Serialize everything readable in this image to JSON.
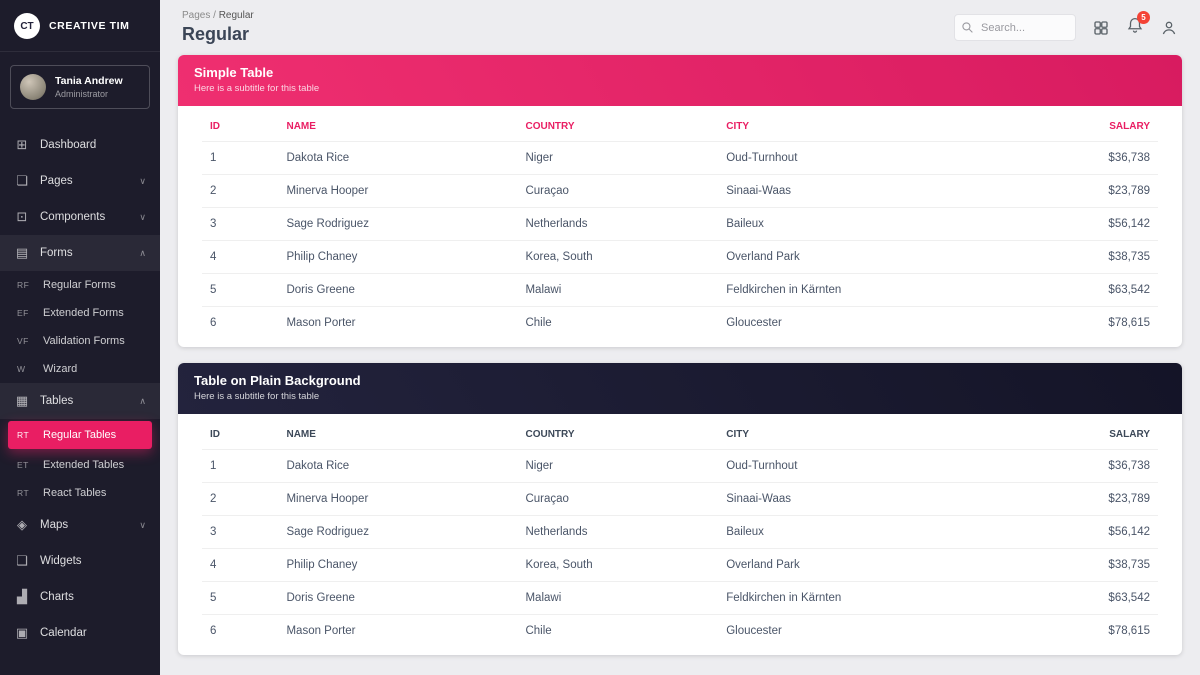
{
  "colors": {
    "accent": "#e91e63",
    "sidebar_bg": "#1d1c2b",
    "dark_header": "#1a1a31",
    "badge": "#f44336"
  },
  "sidebar": {
    "brand": {
      "initials": "CT",
      "name": "CREATIVE TIM"
    },
    "user": {
      "name": "Tania Andrew",
      "role": "Administrator"
    },
    "icon_glyphs": {
      "dashboard": "⊞",
      "pages": "❏",
      "components": "⊡",
      "forms": "▤",
      "tables": "▦",
      "maps": "◈",
      "widgets": "❑",
      "charts": "▟",
      "calendar": "▣"
    },
    "items": [
      {
        "label": "Dashboard",
        "icon": "dashboard"
      },
      {
        "label": "Pages",
        "icon": "pages",
        "chevron": "down"
      },
      {
        "label": "Components",
        "icon": "components",
        "chevron": "down"
      },
      {
        "label": "Forms",
        "icon": "forms",
        "chevron": "up",
        "open": true,
        "children": [
          {
            "mini": "RF",
            "label": "Regular Forms"
          },
          {
            "mini": "EF",
            "label": "Extended Forms"
          },
          {
            "mini": "VF",
            "label": "Validation Forms"
          },
          {
            "mini": "W",
            "label": "Wizard"
          }
        ]
      },
      {
        "label": "Tables",
        "icon": "tables",
        "chevron": "up",
        "open": true,
        "children": [
          {
            "mini": "RT",
            "label": "Regular Tables",
            "active": true
          },
          {
            "mini": "ET",
            "label": "Extended Tables"
          },
          {
            "mini": "RT",
            "label": "React Tables"
          }
        ]
      },
      {
        "label": "Maps",
        "icon": "maps",
        "chevron": "down"
      },
      {
        "label": "Widgets",
        "icon": "widgets"
      },
      {
        "label": "Charts",
        "icon": "charts"
      },
      {
        "label": "Calendar",
        "icon": "calendar"
      }
    ]
  },
  "header": {
    "breadcrumb": {
      "parent": "Pages",
      "separator": "/",
      "current": "Regular"
    },
    "title": "Regular",
    "search_placeholder": "Search...",
    "notification_count": "5"
  },
  "cards": [
    {
      "title": "Simple Table",
      "subtitle": "Here is a subtitle for this table",
      "variant": "rose"
    },
    {
      "title": "Table on Plain Background",
      "subtitle": "Here is a subtitle for this table",
      "variant": "dark"
    }
  ],
  "table": {
    "columns": [
      "ID",
      "NAME",
      "COUNTRY",
      "CITY",
      "SALARY"
    ],
    "rows": [
      [
        "1",
        "Dakota Rice",
        "Niger",
        "Oud-Turnhout",
        "$36,738"
      ],
      [
        "2",
        "Minerva Hooper",
        "Curaçao",
        "Sinaai-Waas",
        "$23,789"
      ],
      [
        "3",
        "Sage Rodriguez",
        "Netherlands",
        "Baileux",
        "$56,142"
      ],
      [
        "4",
        "Philip Chaney",
        "Korea, South",
        "Overland Park",
        "$38,735"
      ],
      [
        "5",
        "Doris Greene",
        "Malawi",
        "Feldkirchen in Kärnten",
        "$63,542"
      ],
      [
        "6",
        "Mason Porter",
        "Chile",
        "Gloucester",
        "$78,615"
      ]
    ]
  }
}
